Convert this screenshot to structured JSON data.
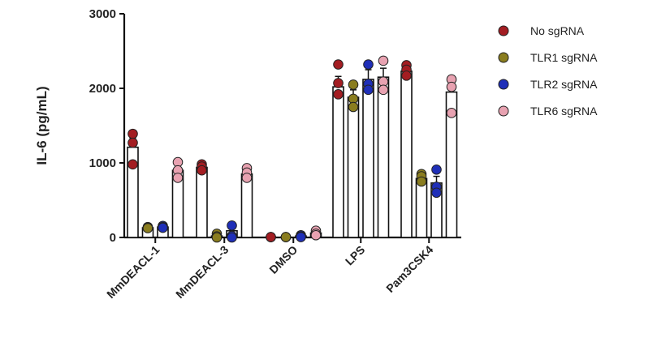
{
  "chart_data": {
    "type": "bar",
    "ylabel": "IL-6 (pg/mL)",
    "xlabel": "",
    "ylim": [
      0,
      3000
    ],
    "yticks": [
      0,
      1000,
      2000,
      3000
    ],
    "categories": [
      "MmDEACL-1",
      "MmDEACL-3",
      "DMSO",
      "LPS",
      "Pam3CSK4"
    ],
    "legend_position": "top-right",
    "series": [
      {
        "name": "No sgRNA",
        "color": "#a31d22",
        "values": [
          1210,
          940,
          5,
          2020,
          2230
        ],
        "errors": [
          120,
          30,
          0,
          140,
          60
        ],
        "points": [
          [
            1390,
            1270,
            980
          ],
          [
            980,
            950,
            900
          ],
          [
            5,
            5,
            5
          ],
          [
            2320,
            2070,
            1920
          ],
          [
            2310,
            2250,
            2170
          ]
        ]
      },
      {
        "name": "TLR1 sgRNA",
        "color": "#8a7d1f",
        "values": [
          130,
          20,
          5,
          1880,
          790
        ],
        "errors": [
          10,
          15,
          0,
          100,
          40
        ],
        "points": [
          [
            140,
            130,
            125
          ],
          [
            50,
            15,
            0
          ],
          [
            5,
            5,
            5
          ],
          [
            2050,
            1860,
            1750
          ],
          [
            850,
            820,
            750
          ]
        ]
      },
      {
        "name": "TLR2 sgRNA",
        "color": "#1f2fb8",
        "values": [
          140,
          90,
          20,
          2120,
          730
        ],
        "errors": [
          15,
          50,
          10,
          130,
          90
        ],
        "points": [
          [
            155,
            140,
            130
          ],
          [
            160,
            20,
            0
          ],
          [
            30,
            15,
            5
          ],
          [
            2320,
            2060,
            1980
          ],
          [
            910,
            680,
            600
          ]
        ]
      },
      {
        "name": "TLR6 sgRNA",
        "color": "#e8a2b1",
        "values": [
          900,
          850,
          60,
          2150,
          1950
        ],
        "errors": [
          70,
          50,
          20,
          120,
          100
        ],
        "points": [
          [
            1010,
            900,
            800
          ],
          [
            930,
            870,
            800
          ],
          [
            90,
            50,
            30
          ],
          [
            2370,
            2090,
            1980
          ],
          [
            2120,
            2020,
            1670
          ]
        ]
      }
    ]
  }
}
